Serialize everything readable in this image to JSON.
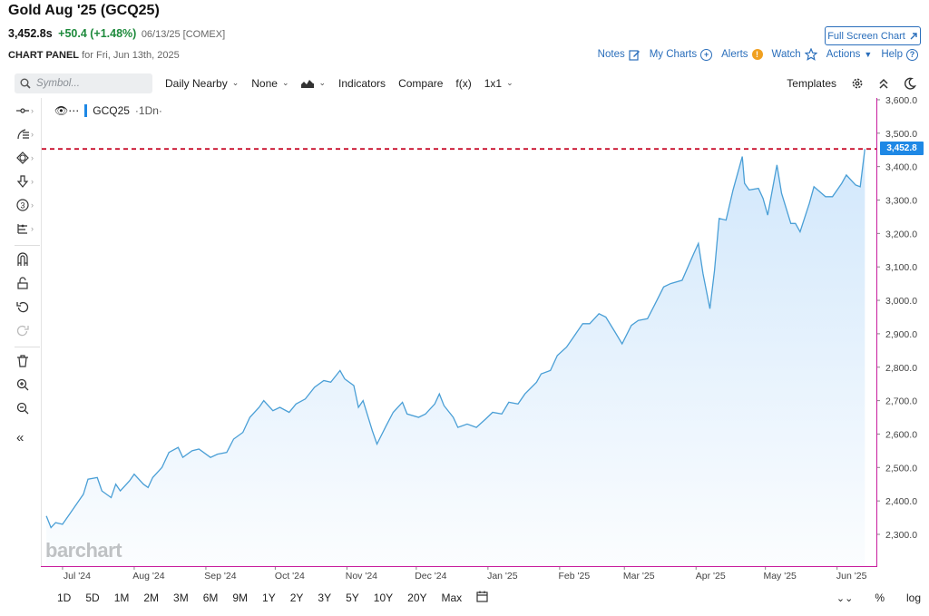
{
  "header": {
    "title": "Gold Aug '25 (GCQ25)",
    "price": "3,452.8s",
    "change": "+50.4 (+1.48%)",
    "date_exchange": "06/13/25 [COMEX]",
    "fullscreen_label": "Full Screen Chart"
  },
  "panel": {
    "label": "CHART PANEL",
    "for_date": "for Fri, Jun 13th, 2025"
  },
  "links": {
    "notes": "Notes",
    "my_charts": "My Charts",
    "alerts": "Alerts",
    "watch": "Watch",
    "actions": "Actions",
    "help": "Help"
  },
  "toolbar": {
    "symbol_placeholder": "Symbol...",
    "period": "Daily Nearby",
    "overlay": "None",
    "indicators": "Indicators",
    "compare": "Compare",
    "fx": "f(x)",
    "layout": "1x1",
    "templates": "Templates"
  },
  "legend": {
    "symbol": "GCQ25",
    "interval": "·1Dn·"
  },
  "watermark": "barchart",
  "ranges": [
    "1D",
    "5D",
    "1M",
    "2M",
    "3M",
    "6M",
    "9M",
    "1Y",
    "2Y",
    "3Y",
    "5Y",
    "10Y",
    "20Y",
    "Max"
  ],
  "bottom_right": {
    "percent": "%",
    "log": "log"
  },
  "colors": {
    "line": "#4a9fd6",
    "fill_top": "#cfe6fb",
    "reference": "#c8102e",
    "badge": "#1e88e5"
  },
  "chart_data": {
    "type": "area",
    "title": "Gold Aug '25 (GCQ25)",
    "ylim": [
      2200,
      3620
    ],
    "yticks": [
      2300,
      2400,
      2500,
      2600,
      2700,
      2800,
      2900,
      3000,
      3100,
      3200,
      3300,
      3400,
      3500,
      3600
    ],
    "ytick_labels": [
      "2,300.0",
      "2,400.0",
      "2,500.0",
      "2,600.0",
      "2,700.0",
      "2,800.0",
      "2,900.0",
      "3,000.0",
      "3,100.0",
      "3,200.0",
      "3,300.0",
      "3,400.0",
      "3,500.0",
      "3,600.0"
    ],
    "xlim": [
      "2024-06-22",
      "2025-06-18"
    ],
    "xticks": [
      "2024-07-01",
      "2024-08-01",
      "2024-09-01",
      "2024-10-01",
      "2024-11-01",
      "2024-12-01",
      "2025-01-01",
      "2025-02-01",
      "2025-03-01",
      "2025-04-01",
      "2025-05-01",
      "2025-06-01"
    ],
    "xtick_labels": [
      "Jul '24",
      "Aug '24",
      "Sep '24",
      "Oct '24",
      "Nov '24",
      "Dec '24",
      "Jan '25",
      "Feb '25",
      "Mar '25",
      "Apr '25",
      "May '25",
      "Jun '25"
    ],
    "last_value": 3452.8,
    "last_label": "3,452.8",
    "x": [
      "2024-06-24",
      "2024-06-26",
      "2024-06-28",
      "2024-07-01",
      "2024-07-04",
      "2024-07-08",
      "2024-07-10",
      "2024-07-12",
      "2024-07-16",
      "2024-07-18",
      "2024-07-22",
      "2024-07-24",
      "2024-07-26",
      "2024-07-30",
      "2024-08-01",
      "2024-08-05",
      "2024-08-07",
      "2024-08-09",
      "2024-08-13",
      "2024-08-16",
      "2024-08-20",
      "2024-08-22",
      "2024-08-26",
      "2024-08-29",
      "2024-09-03",
      "2024-09-06",
      "2024-09-10",
      "2024-09-13",
      "2024-09-17",
      "2024-09-20",
      "2024-09-24",
      "2024-09-26",
      "2024-09-30",
      "2024-10-03",
      "2024-10-07",
      "2024-10-10",
      "2024-10-14",
      "2024-10-18",
      "2024-10-22",
      "2024-10-25",
      "2024-10-29",
      "2024-10-31",
      "2024-11-04",
      "2024-11-06",
      "2024-11-08",
      "2024-11-12",
      "2024-11-14",
      "2024-11-18",
      "2024-11-21",
      "2024-11-25",
      "2024-11-27",
      "2024-12-02",
      "2024-12-05",
      "2024-12-09",
      "2024-12-11",
      "2024-12-13",
      "2024-12-17",
      "2024-12-19",
      "2024-12-23",
      "2024-12-27",
      "2024-12-31",
      "2025-01-03",
      "2025-01-07",
      "2025-01-10",
      "2025-01-14",
      "2025-01-17",
      "2025-01-22",
      "2025-01-24",
      "2025-01-28",
      "2025-01-31",
      "2025-02-04",
      "2025-02-07",
      "2025-02-11",
      "2025-02-14",
      "2025-02-18",
      "2025-02-21",
      "2025-02-25",
      "2025-02-28",
      "2025-03-04",
      "2025-03-07",
      "2025-03-11",
      "2025-03-14",
      "2025-03-18",
      "2025-03-21",
      "2025-03-26",
      "2025-03-31",
      "2025-04-02",
      "2025-04-04",
      "2025-04-07",
      "2025-04-09",
      "2025-04-11",
      "2025-04-14",
      "2025-04-17",
      "2025-04-21",
      "2025-04-22",
      "2025-04-24",
      "2025-04-28",
      "2025-04-30",
      "2025-05-02",
      "2025-05-06",
      "2025-05-08",
      "2025-05-12",
      "2025-05-14",
      "2025-05-16",
      "2025-05-20",
      "2025-05-22",
      "2025-05-27",
      "2025-05-30",
      "2025-06-03",
      "2025-06-05",
      "2025-06-09",
      "2025-06-11",
      "2025-06-13"
    ],
    "series": [
      {
        "values": [
          2355,
          2320,
          2335,
          2330,
          2360,
          2400,
          2420,
          2465,
          2470,
          2430,
          2410,
          2450,
          2430,
          2460,
          2480,
          2450,
          2440,
          2470,
          2500,
          2545,
          2560,
          2530,
          2550,
          2555,
          2530,
          2540,
          2545,
          2585,
          2605,
          2650,
          2680,
          2700,
          2670,
          2680,
          2665,
          2690,
          2705,
          2740,
          2760,
          2755,
          2790,
          2765,
          2745,
          2680,
          2700,
          2610,
          2570,
          2625,
          2665,
          2695,
          2660,
          2650,
          2660,
          2690,
          2720,
          2685,
          2650,
          2620,
          2630,
          2620,
          2645,
          2665,
          2660,
          2695,
          2690,
          2720,
          2755,
          2780,
          2790,
          2835,
          2860,
          2890,
          2930,
          2930,
          2960,
          2950,
          2905,
          2870,
          2925,
          2940,
          2945,
          2985,
          3040,
          3050,
          3060,
          3140,
          3170,
          3080,
          2975,
          3090,
          3245,
          3240,
          3330,
          3430,
          3350,
          3330,
          3335,
          3305,
          3255,
          3405,
          3320,
          3230,
          3230,
          3205,
          3290,
          3340,
          3310,
          3310,
          3350,
          3375,
          3345,
          3340,
          3452.8
        ]
      }
    ]
  }
}
